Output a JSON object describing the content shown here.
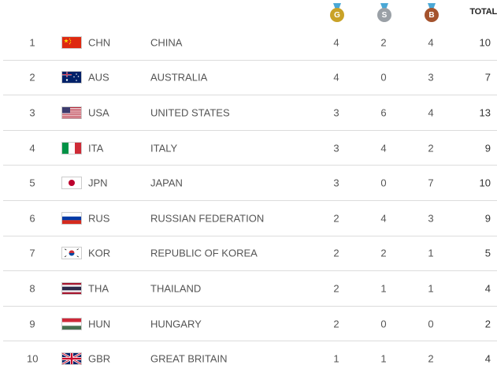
{
  "header": {
    "gold_letter": "G",
    "silver_letter": "S",
    "bronze_letter": "B",
    "total_label": "TOTAL"
  },
  "rows": [
    {
      "rank": "1",
      "code": "CHN",
      "name": "CHINA",
      "gold": "4",
      "silver": "2",
      "bronze": "4",
      "total": "10"
    },
    {
      "rank": "2",
      "code": "AUS",
      "name": "AUSTRALIA",
      "gold": "4",
      "silver": "0",
      "bronze": "3",
      "total": "7"
    },
    {
      "rank": "3",
      "code": "USA",
      "name": "UNITED STATES",
      "gold": "3",
      "silver": "6",
      "bronze": "4",
      "total": "13"
    },
    {
      "rank": "4",
      "code": "ITA",
      "name": "ITALY",
      "gold": "3",
      "silver": "4",
      "bronze": "2",
      "total": "9"
    },
    {
      "rank": "5",
      "code": "JPN",
      "name": "JAPAN",
      "gold": "3",
      "silver": "0",
      "bronze": "7",
      "total": "10"
    },
    {
      "rank": "6",
      "code": "RUS",
      "name": "RUSSIAN FEDERATION",
      "gold": "2",
      "silver": "4",
      "bronze": "3",
      "total": "9"
    },
    {
      "rank": "7",
      "code": "KOR",
      "name": "REPUBLIC OF KOREA",
      "gold": "2",
      "silver": "2",
      "bronze": "1",
      "total": "5"
    },
    {
      "rank": "8",
      "code": "THA",
      "name": "THAILAND",
      "gold": "2",
      "silver": "1",
      "bronze": "1",
      "total": "4"
    },
    {
      "rank": "9",
      "code": "HUN",
      "name": "HUNGARY",
      "gold": "2",
      "silver": "0",
      "bronze": "0",
      "total": "2"
    },
    {
      "rank": "10",
      "code": "GBR",
      "name": "GREAT BRITAIN",
      "gold": "1",
      "silver": "1",
      "bronze": "2",
      "total": "4"
    }
  ]
}
